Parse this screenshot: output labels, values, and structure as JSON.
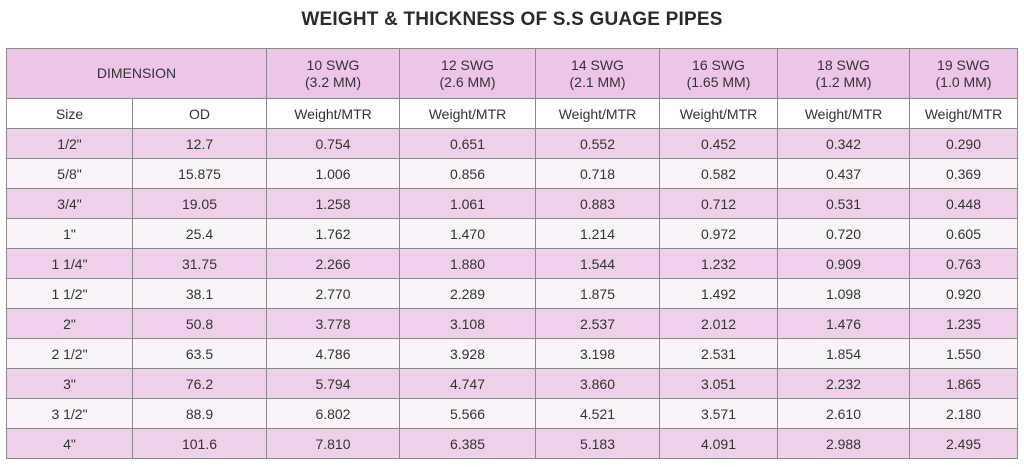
{
  "title": "WEIGHT & THICKNESS OF S.S GUAGE PIPES",
  "dimension_header": "DIMENSION",
  "swg_columns": [
    {
      "swg": "10 SWG",
      "mm": "(3.2 MM)"
    },
    {
      "swg": "12 SWG",
      "mm": "(2.6 MM)"
    },
    {
      "swg": "14 SWG",
      "mm": "(2.1 MM)"
    },
    {
      "swg": "16 SWG",
      "mm": "(1.65 MM)"
    },
    {
      "swg": "18 SWG",
      "mm": "(1.2 MM)"
    },
    {
      "swg": "19 SWG",
      "mm": "(1.0 MM)"
    }
  ],
  "subheaders": {
    "size": "Size",
    "od": "OD",
    "weight": [
      "Weight/MTR",
      "Weight/MTR",
      "Weight/MTR",
      "Weight/MTR",
      "Weight/MTR",
      "Weight/MTR"
    ]
  },
  "rows": [
    {
      "size": "1/2\"",
      "od": "12.7",
      "w": [
        "0.754",
        "0.651",
        "0.552",
        "0.452",
        "0.342",
        "0.290"
      ]
    },
    {
      "size": "5/8\"",
      "od": "15.875",
      "w": [
        "1.006",
        "0.856",
        "0.718",
        "0.582",
        "0.437",
        "0.369"
      ]
    },
    {
      "size": "3/4\"",
      "od": "19.05",
      "w": [
        "1.258",
        "1.061",
        "0.883",
        "0.712",
        "0.531",
        "0.448"
      ]
    },
    {
      "size": "1\"",
      "od": "25.4",
      "w": [
        "1.762",
        "1.470",
        "1.214",
        "0.972",
        "0.720",
        "0.605"
      ]
    },
    {
      "size": "1 1/4\"",
      "od": "31.75",
      "w": [
        "2.266",
        "1.880",
        "1.544",
        "1.232",
        "0.909",
        "0.763"
      ]
    },
    {
      "size": "1 1/2\"",
      "od": "38.1",
      "w": [
        "2.770",
        "2.289",
        "1.875",
        "1.492",
        "1.098",
        "0.920"
      ]
    },
    {
      "size": "2\"",
      "od": "50.8",
      "w": [
        "3.778",
        "3.108",
        "2.537",
        "2.012",
        "1.476",
        "1.235"
      ]
    },
    {
      "size": "2 1/2\"",
      "od": "63.5",
      "w": [
        "4.786",
        "3.928",
        "3.198",
        "2.531",
        "1.854",
        "1.550"
      ]
    },
    {
      "size": "3\"",
      "od": "76.2",
      "w": [
        "5.794",
        "4.747",
        "3.860",
        "3.051",
        "2.232",
        "1.865"
      ]
    },
    {
      "size": "3 1/2\"",
      "od": "88.9",
      "w": [
        "6.802",
        "5.566",
        "4.521",
        "3.571",
        "2.610",
        "2.180"
      ]
    },
    {
      "size": "4\"",
      "od": "101.6",
      "w": [
        "7.810",
        "6.385",
        "5.183",
        "4.091",
        "2.988",
        "2.495"
      ]
    }
  ]
}
